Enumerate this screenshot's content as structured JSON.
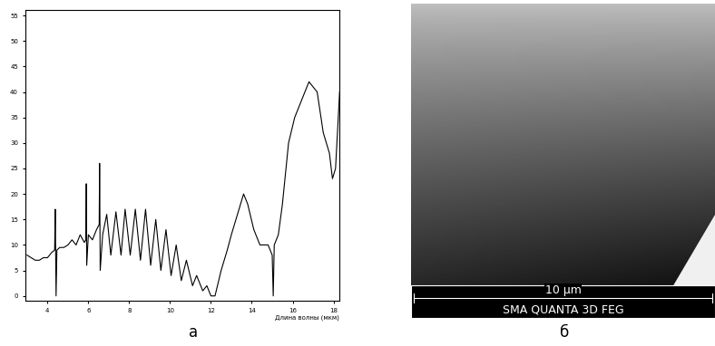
{
  "chart_data": {
    "type": "line",
    "x_label": "Длина волны (мкм)",
    "caption": "а",
    "x": [
      3.0,
      3.2,
      3.4,
      3.6,
      3.8,
      4.0,
      4.2,
      4.35,
      4.38,
      4.42,
      4.46,
      4.6,
      4.8,
      5.0,
      5.2,
      5.4,
      5.6,
      5.8,
      5.88,
      5.9,
      5.92,
      6.0,
      6.2,
      6.4,
      6.53,
      6.55,
      6.58,
      6.7,
      6.9,
      7.1,
      7.35,
      7.6,
      7.8,
      8.05,
      8.3,
      8.55,
      8.8,
      9.05,
      9.3,
      9.55,
      9.8,
      10.05,
      10.3,
      10.55,
      10.8,
      11.1,
      11.3,
      11.6,
      11.8,
      12.0,
      12.2,
      12.5,
      12.8,
      13.0,
      13.3,
      13.6,
      13.8,
      14.1,
      14.4,
      14.8,
      15.0,
      15.05,
      15.1,
      15.3,
      15.5,
      15.8,
      16.1,
      16.5,
      16.8,
      17.0,
      17.2,
      17.5,
      17.8,
      17.95,
      18.1,
      18.3
    ],
    "values": [
      8,
      7.5,
      7,
      7,
      7.5,
      7.5,
      8.5,
      9,
      17,
      0,
      9,
      9.5,
      9.5,
      10,
      11,
      10,
      12,
      10.5,
      11,
      22,
      6,
      12,
      11,
      13,
      14,
      26,
      5,
      12,
      16,
      8,
      16.5,
      8,
      17,
      8,
      17,
      7,
      17,
      6,
      15,
      5,
      13,
      4,
      10,
      3,
      7,
      2,
      4,
      1,
      2,
      0,
      0,
      5,
      9,
      12,
      16,
      20,
      18,
      13,
      10,
      10,
      8,
      0,
      10,
      12,
      18,
      30,
      35,
      39,
      42,
      41,
      40,
      32,
      28,
      23,
      25,
      40
    ],
    "color": "#000000",
    "xlim": [
      2.9,
      18.3
    ],
    "ylim": [
      -1,
      56
    ],
    "xticks": [
      4,
      6,
      8,
      10,
      12,
      14,
      16,
      18
    ],
    "yticks": [
      0,
      5,
      10,
      15,
      20,
      25,
      30,
      35,
      40,
      45,
      50,
      55
    ]
  },
  "image": {
    "caption": "б",
    "scale_bar": "10 µm",
    "instrument": "SMA QUANTA 3D FEG"
  }
}
